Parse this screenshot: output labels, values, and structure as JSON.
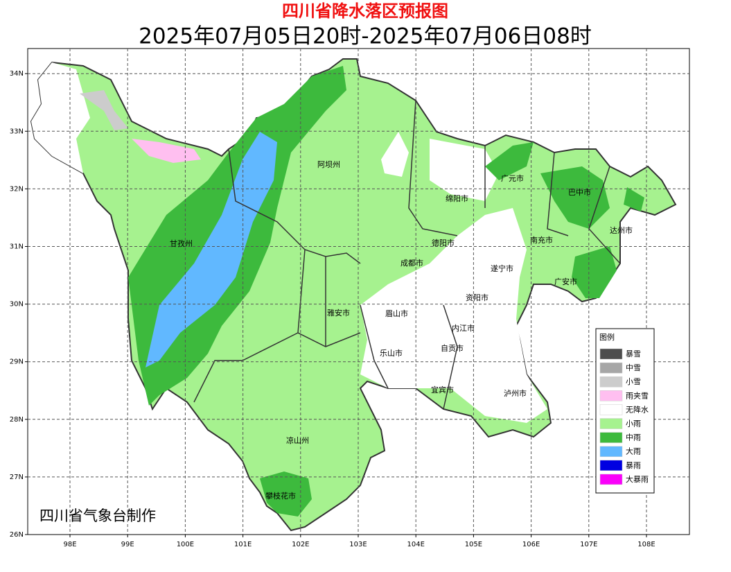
{
  "header": {
    "title": "四川省降水落区预报图",
    "subtitle": "2025年07月05日20时-2025年07月06日08时"
  },
  "map": {
    "xticks": [
      {
        "value": 98,
        "label": "98E"
      },
      {
        "value": 99,
        "label": "99E"
      },
      {
        "value": 100,
        "label": "100E"
      },
      {
        "value": 101,
        "label": "101E"
      },
      {
        "value": 102,
        "label": "102E"
      },
      {
        "value": 103,
        "label": "103E"
      },
      {
        "value": 104,
        "label": "104E"
      },
      {
        "value": 105,
        "label": "105E"
      },
      {
        "value": 106,
        "label": "106E"
      },
      {
        "value": 107,
        "label": "107E"
      },
      {
        "value": 108,
        "label": "108E"
      }
    ],
    "yticks": [
      {
        "value": 26,
        "label": "26N"
      },
      {
        "value": 27,
        "label": "27N"
      },
      {
        "value": 28,
        "label": "28N"
      },
      {
        "value": 29,
        "label": "29N"
      },
      {
        "value": 30,
        "label": "30N"
      },
      {
        "value": 31,
        "label": "31N"
      },
      {
        "value": 32,
        "label": "32N"
      },
      {
        "value": 33,
        "label": "33N"
      },
      {
        "value": 34,
        "label": "34N"
      }
    ],
    "cities": [
      "阿坝州",
      "甘孜州",
      "广元市",
      "巴中市",
      "绵阳市",
      "德阳市",
      "南充市",
      "达州市",
      "成都市",
      "遂宁市",
      "广安市",
      "资阳市",
      "雅安市",
      "眉山市",
      "内江市",
      "自贡市",
      "乐山市",
      "宜宾市",
      "泸州市",
      "凉山州",
      "攀枝花市"
    ]
  },
  "legend": {
    "title": "图例",
    "items": [
      {
        "label": "暴雪",
        "color": "#4d4d4d"
      },
      {
        "label": "中雪",
        "color": "#a6a6a6"
      },
      {
        "label": "小雪",
        "color": "#cccccc"
      },
      {
        "label": "雨夹雪",
        "color": "#ffbff0"
      },
      {
        "label": "无降水",
        "color": "#ffffff"
      },
      {
        "label": "小雨",
        "color": "#a6f28f"
      },
      {
        "label": "中雨",
        "color": "#3dba3d"
      },
      {
        "label": "大雨",
        "color": "#61b8ff"
      },
      {
        "label": "暴雨",
        "color": "#0000e1"
      },
      {
        "label": "大暴雨",
        "color": "#fa00fa"
      }
    ]
  },
  "footer": {
    "credit": "四川省气象台制作"
  }
}
